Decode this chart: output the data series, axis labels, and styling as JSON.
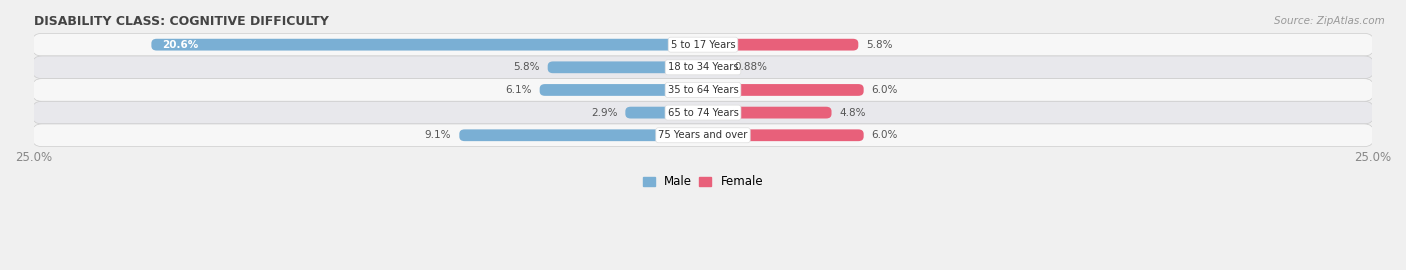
{
  "title": "DISABILITY CLASS: COGNITIVE DIFFICULTY",
  "source": "Source: ZipAtlas.com",
  "categories": [
    "5 to 17 Years",
    "18 to 34 Years",
    "35 to 64 Years",
    "65 to 74 Years",
    "75 Years and over"
  ],
  "male_values": [
    20.6,
    5.8,
    6.1,
    2.9,
    9.1
  ],
  "female_values": [
    5.8,
    0.88,
    6.0,
    4.8,
    6.0
  ],
  "male_label_texts": [
    "20.6%",
    "5.8%",
    "6.1%",
    "2.9%",
    "9.1%"
  ],
  "female_label_texts": [
    "5.8%",
    "0.88%",
    "6.0%",
    "4.8%",
    "6.0%"
  ],
  "male_color": "#7aafd4",
  "female_color_row0": "#e8607a",
  "female_color_row1": "#f0aabb",
  "female_color_row2": "#e8607a",
  "female_color_row3": "#e8607a",
  "female_color_row4": "#e8607a",
  "axis_max": 25.0,
  "row_bg_colors": [
    "#f7f7f7",
    "#e8e8ec"
  ],
  "bar_height": 0.52,
  "title_color": "#444444",
  "axis_label_color": "#888888",
  "fig_bg": "#f0f0f0"
}
